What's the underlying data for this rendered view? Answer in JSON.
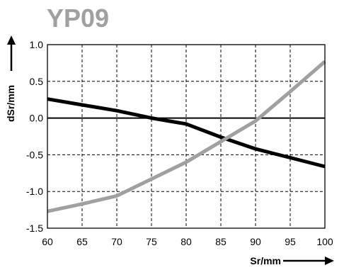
{
  "chart_data": {
    "type": "line",
    "title": "YP09",
    "xlabel": "Sr/mm",
    "ylabel": "dSr/mm",
    "xlim": [
      60,
      100
    ],
    "ylim": [
      -1.5,
      1.0
    ],
    "x_ticks": [
      "60",
      "65",
      "70",
      "75",
      "80",
      "85",
      "90",
      "95",
      "100"
    ],
    "y_ticks": [
      "1.0",
      "0.5",
      "0.0",
      "-0.5",
      "-1.0",
      "-1.5"
    ],
    "grid": true,
    "grid_style": "dashed",
    "zero_line": true,
    "series": [
      {
        "color": "#000000",
        "points": [
          [
            60,
            0.26
          ],
          [
            65,
            0.18
          ],
          [
            70,
            0.1
          ],
          [
            75,
            0.0
          ],
          [
            80,
            -0.08
          ],
          [
            85,
            -0.26
          ],
          [
            90,
            -0.42
          ],
          [
            95,
            -0.54
          ],
          [
            100,
            -0.66
          ]
        ]
      },
      {
        "color": "#a0a0a0",
        "points": [
          [
            60,
            -1.27
          ],
          [
            65,
            -1.17
          ],
          [
            70,
            -1.06
          ],
          [
            75,
            -0.83
          ],
          [
            80,
            -0.6
          ],
          [
            85,
            -0.32
          ],
          [
            90,
            -0.04
          ],
          [
            95,
            0.36
          ],
          [
            100,
            0.77
          ]
        ]
      }
    ]
  },
  "colors": {
    "title": "#a0a0a0",
    "grid": "#000000",
    "axis": "#000000"
  }
}
